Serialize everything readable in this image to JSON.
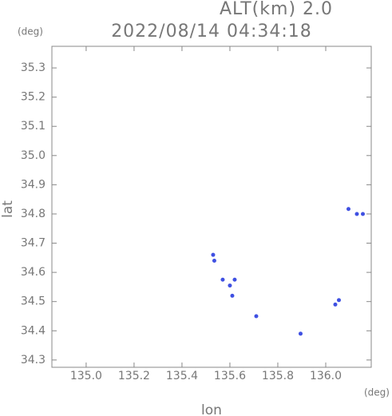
{
  "chart_data": {
    "type": "scatter",
    "title": "2022/08/14 04:34:18",
    "subtitle": "ALT(km) 2.0",
    "y_unit": "(deg)",
    "x_unit": "(deg)",
    "x_label": "lon",
    "y_label": "lat",
    "color": "#3f50e2",
    "x": [
      135.53,
      135.535,
      135.57,
      135.6,
      135.62,
      135.61,
      135.71,
      135.895,
      136.04,
      136.055,
      136.095,
      136.13,
      136.155
    ],
    "y": [
      34.66,
      34.64,
      34.575,
      34.555,
      34.575,
      34.52,
      34.45,
      34.39,
      34.49,
      34.505,
      34.817,
      34.8,
      34.8
    ],
    "xlim": [
      134.857,
      136.19
    ],
    "ylim": [
      34.275,
      35.374
    ],
    "xticks": [
      {
        "value": 135.0,
        "label": "135.0"
      },
      135.2,
      135.4,
      135.6,
      135.8,
      {
        "value": 136.0,
        "label": "136.0"
      }
    ],
    "yticks": [
      34.3,
      34.4,
      34.5,
      34.6,
      34.7,
      34.8,
      34.9,
      {
        "value": 35.0,
        "label": "35.0"
      },
      35.1,
      35.2,
      35.3
    ]
  }
}
